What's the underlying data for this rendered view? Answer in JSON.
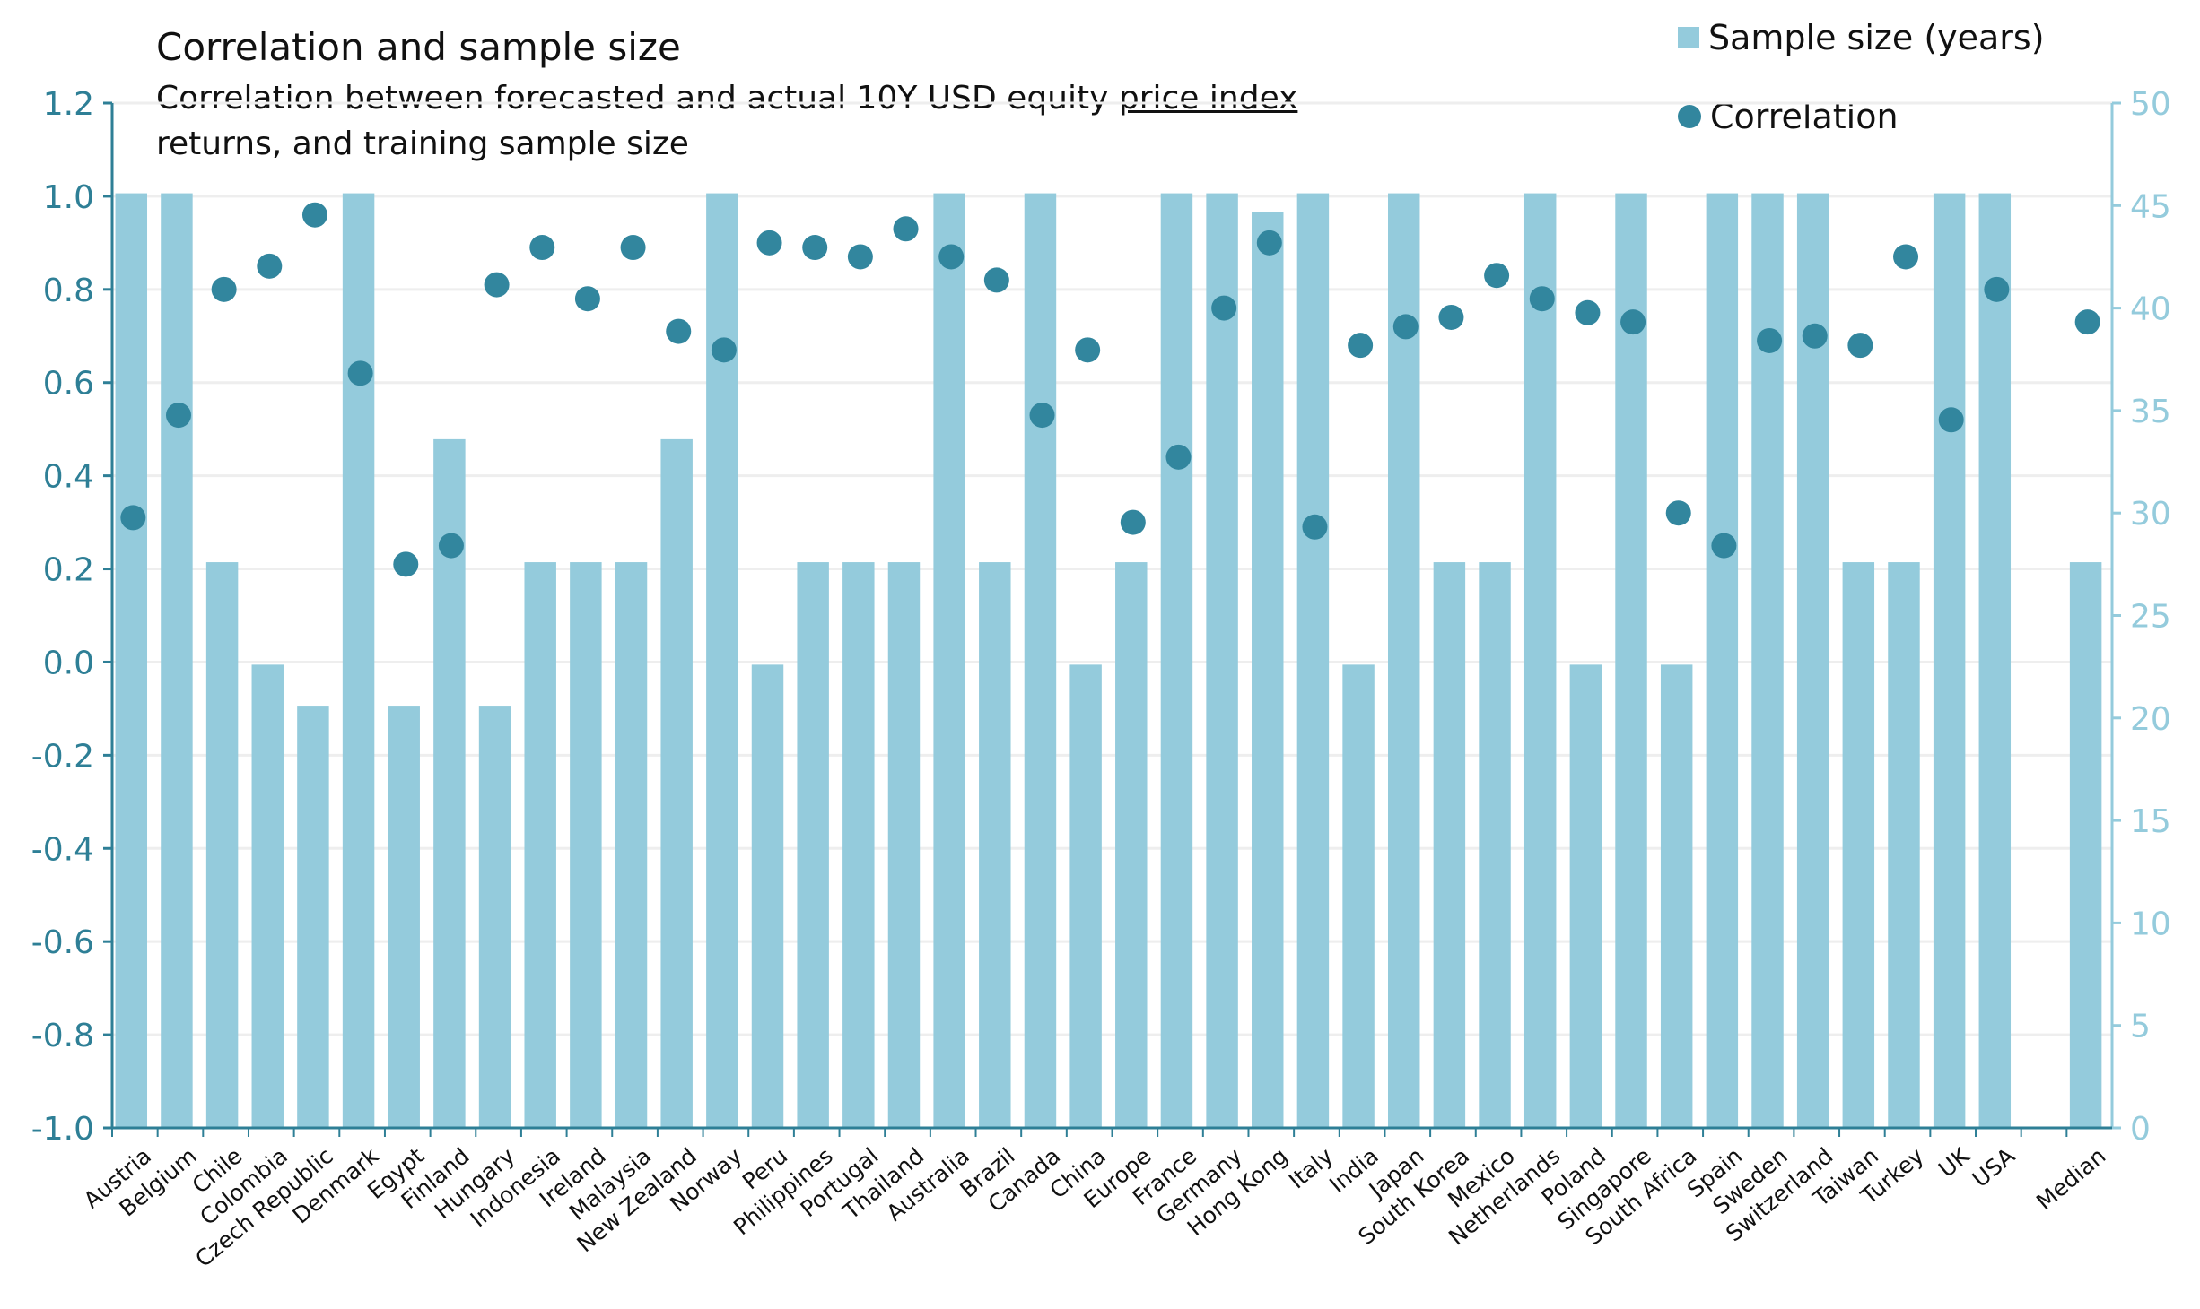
{
  "chart_data": {
    "type": "bar",
    "title": "Correlation and sample size",
    "subtitle_parts": [
      "Correlation between forecasted and actual 10Y USD equity ",
      "price index ",
      "returns, and training sample size"
    ],
    "categories": [
      "Austria",
      "Belgium",
      "Chile",
      "Colombia",
      "Czech Republic",
      "Denmark",
      "Egypt",
      "Finland",
      "Hungary",
      "Indonesia",
      "Ireland",
      "Malaysia",
      "New Zealand",
      "Norway",
      "Peru",
      "Philippines",
      "Portugal",
      "Thailand",
      "Australia",
      "Brazil",
      "Canada",
      "China",
      "Europe",
      "France",
      "Germany",
      "Hong Kong",
      "Italy",
      "India",
      "Japan",
      "South Korea",
      "Mexico",
      "Netherlands",
      "Poland",
      "Singapore",
      "South Africa",
      "Spain",
      "Sweden",
      "Switzerland",
      "Taiwan",
      "Turkey",
      "UK",
      "USA",
      "",
      "Median"
    ],
    "series": [
      {
        "name": "Sample size (years)",
        "type": "bar",
        "axis": "right",
        "color": "#94CBDC",
        "values": [
          45.6,
          45.6,
          27.6,
          22.6,
          20.6,
          45.6,
          20.6,
          33.6,
          20.6,
          27.6,
          27.6,
          27.6,
          33.6,
          45.6,
          22.6,
          27.6,
          27.6,
          27.6,
          45.6,
          27.6,
          45.6,
          22.6,
          27.6,
          45.6,
          45.6,
          44.7,
          45.6,
          22.6,
          45.6,
          27.6,
          27.6,
          45.6,
          22.6,
          45.6,
          22.6,
          45.6,
          45.6,
          45.6,
          27.6,
          27.6,
          45.6,
          45.6,
          null,
          27.6
        ]
      },
      {
        "name": "Correlation",
        "type": "scatter",
        "axis": "left",
        "color": "#32869E",
        "values": [
          0.31,
          0.53,
          0.8,
          0.85,
          0.96,
          0.62,
          0.21,
          0.25,
          0.81,
          0.89,
          0.78,
          0.89,
          0.71,
          0.67,
          0.9,
          0.89,
          0.87,
          0.93,
          0.87,
          0.82,
          0.53,
          0.67,
          0.3,
          0.44,
          0.76,
          0.9,
          0.29,
          0.68,
          0.72,
          0.74,
          0.83,
          0.78,
          0.75,
          0.73,
          0.32,
          0.25,
          0.69,
          0.7,
          0.68,
          0.87,
          0.52,
          0.8,
          null,
          0.73
        ]
      }
    ],
    "ylim_left": [
      -1.0,
      1.2
    ],
    "yticks_left": [
      "-1.0",
      "-0.8",
      "-0.6",
      "-0.4",
      "-0.2",
      "0.0",
      "0.2",
      "0.4",
      "0.6",
      "0.8",
      "1.0",
      "1.2"
    ],
    "ylim_right": [
      0,
      50
    ],
    "yticks_right": [
      "0",
      "5",
      "10",
      "15",
      "20",
      "25",
      "30",
      "35",
      "40",
      "45",
      "50"
    ],
    "grid": true,
    "legend_position": "top-right",
    "left_axis_color": "#2E7F96",
    "right_axis_color": "#94CBDC"
  }
}
